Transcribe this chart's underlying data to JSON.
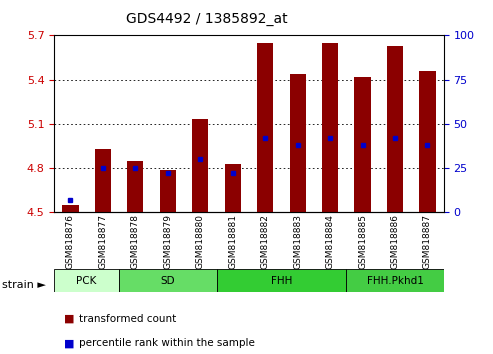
{
  "title": "GDS4492 / 1385892_at",
  "samples": [
    "GSM818876",
    "GSM818877",
    "GSM818878",
    "GSM818879",
    "GSM818880",
    "GSM818881",
    "GSM818882",
    "GSM818883",
    "GSM818884",
    "GSM818885",
    "GSM818886",
    "GSM818887"
  ],
  "transformed_count": [
    4.55,
    4.93,
    4.85,
    4.79,
    5.13,
    4.83,
    5.65,
    5.44,
    5.65,
    5.42,
    5.63,
    5.46
  ],
  "percentile_rank": [
    7,
    25,
    25,
    22,
    30,
    22,
    42,
    38,
    42,
    38,
    42,
    38
  ],
  "ylim_left": [
    4.5,
    5.7
  ],
  "ylim_right": [
    0,
    100
  ],
  "yticks_left": [
    4.5,
    4.8,
    5.1,
    5.4,
    5.7
  ],
  "yticks_right": [
    0,
    25,
    50,
    75,
    100
  ],
  "bar_color": "#8B0000",
  "dot_color": "#0000CC",
  "base_value": 4.5,
  "bar_width": 0.5,
  "group_defs": [
    {
      "label": "PCK",
      "start": 0,
      "end": 1,
      "color": "#CCFFCC"
    },
    {
      "label": "SD",
      "start": 2,
      "end": 4,
      "color": "#66DD66"
    },
    {
      "label": "FHH",
      "start": 5,
      "end": 8,
      "color": "#33CC33"
    },
    {
      "label": "FHH.Pkhd1",
      "start": 9,
      "end": 11,
      "color": "#44CC44"
    }
  ],
  "legend_items": [
    {
      "label": "transformed count",
      "color": "#8B0000"
    },
    {
      "label": "percentile rank within the sample",
      "color": "#0000CC"
    }
  ]
}
